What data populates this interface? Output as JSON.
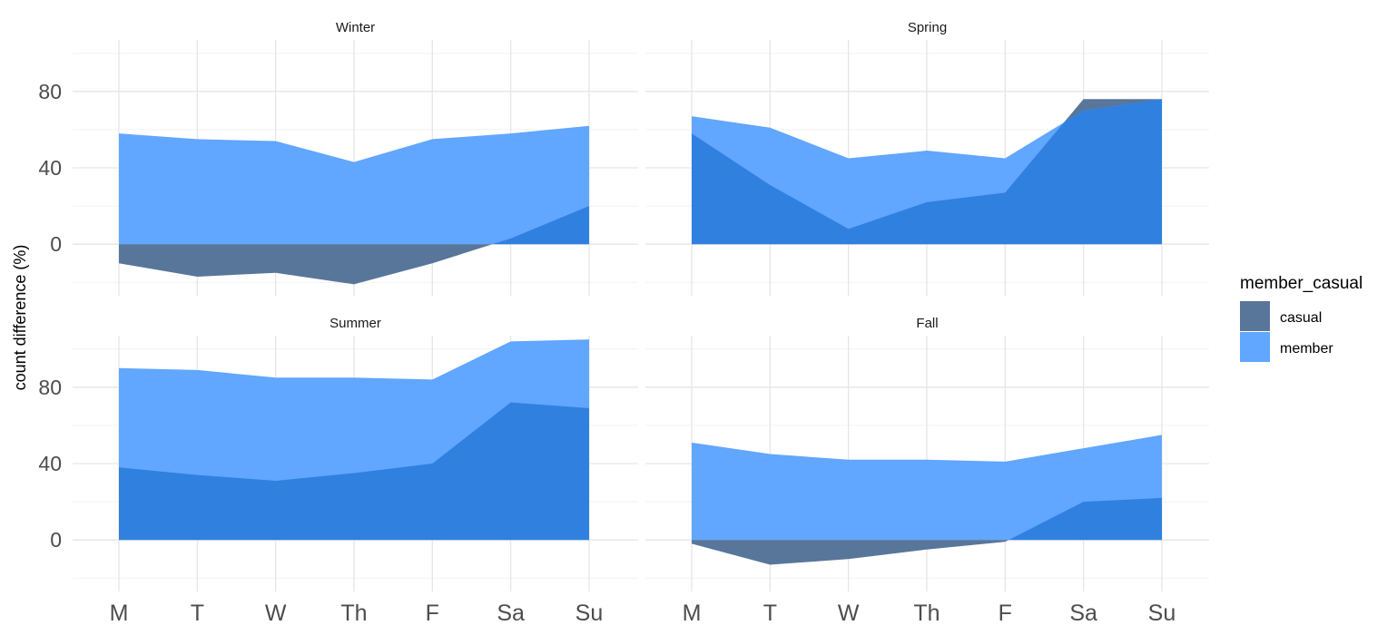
{
  "chart_data": {
    "type": "area",
    "ylabel": "count difference (%)",
    "xlabel": "",
    "categories": [
      "M",
      "T",
      "W",
      "Th",
      "F",
      "Sa",
      "Su"
    ],
    "y_ticks": [
      0,
      40,
      80
    ],
    "ylim": [
      -27,
      107
    ],
    "grid": true,
    "legend": {
      "title": "member_casual",
      "position": "right",
      "entries": [
        {
          "name": "casual",
          "color": "#58769A"
        },
        {
          "name": "member",
          "color": "#61A6FF"
        }
      ]
    },
    "overlap_color": "#3080E0",
    "panels": [
      {
        "title": "Winter",
        "series": [
          {
            "name": "casual",
            "values": [
              -10,
              -17,
              -15,
              -21,
              -10,
              3,
              20
            ]
          },
          {
            "name": "member",
            "values": [
              58,
              55,
              54,
              43,
              55,
              58,
              62
            ]
          }
        ]
      },
      {
        "title": "Spring",
        "series": [
          {
            "name": "casual",
            "values": [
              58,
              31,
              8,
              22,
              27,
              76,
              76
            ]
          },
          {
            "name": "member",
            "values": [
              67,
              61,
              45,
              49,
              45,
              70,
              76
            ]
          }
        ]
      },
      {
        "title": "Summer",
        "series": [
          {
            "name": "casual",
            "values": [
              38,
              34,
              31,
              35,
              40,
              72,
              69
            ]
          },
          {
            "name": "member",
            "values": [
              90,
              89,
              85,
              85,
              84,
              104,
              105
            ]
          }
        ]
      },
      {
        "title": "Fall",
        "series": [
          {
            "name": "casual",
            "values": [
              -2,
              -13,
              -10,
              -5,
              -1,
              20,
              22
            ]
          },
          {
            "name": "member",
            "values": [
              51,
              45,
              42,
              42,
              41,
              48,
              55
            ]
          }
        ]
      }
    ]
  }
}
